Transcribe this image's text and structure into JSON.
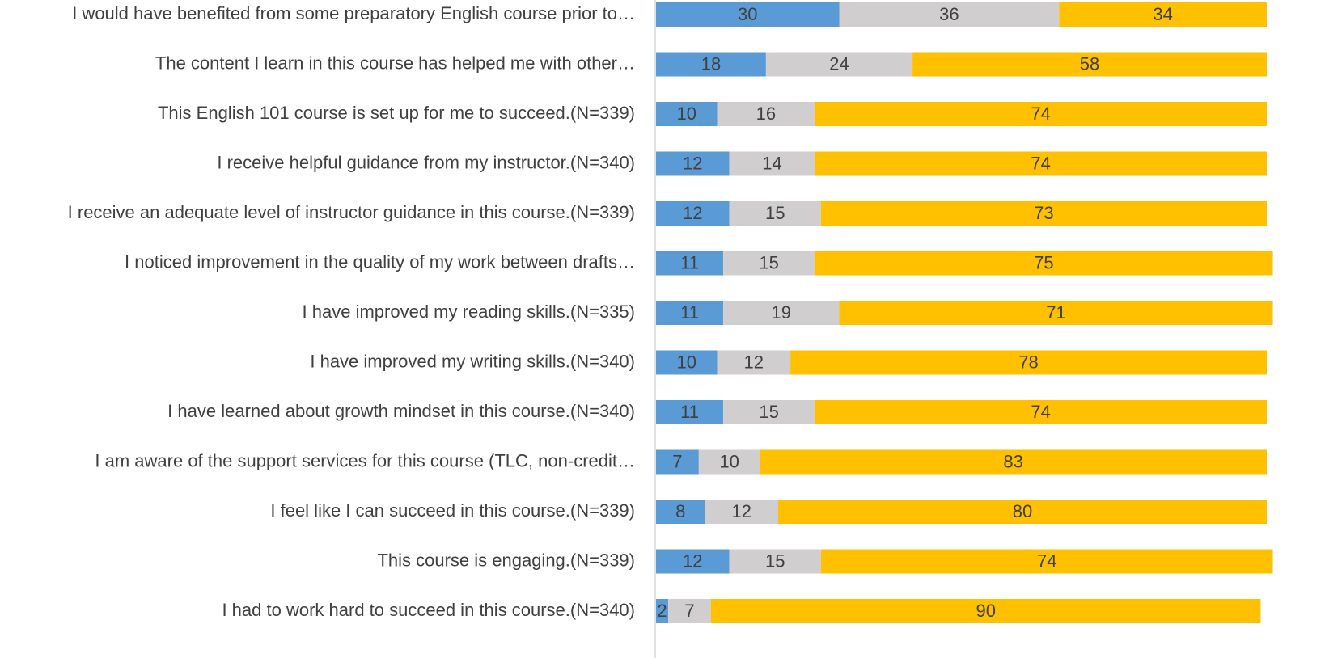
{
  "chart_data": {
    "type": "stacked-barh",
    "categories": [
      "I would have benefited from some preparatory English course prior to…",
      "The content I learn in this course has helped me with other…",
      "This English 101 course is set up for me to succeed.(N=339)",
      "I receive helpful guidance from my instructor.(N=340)",
      "I receive an adequate level of instructor guidance in this course.(N=339)",
      "I noticed improvement in the quality of my work between drafts…",
      "I have improved my reading skills.(N=335)",
      "I have improved my writing skills.(N=340)",
      "I have learned about growth mindset in this course.(N=340)",
      "I am aware of the support services for this course (TLC, non-credit…",
      "I feel like I can succeed in this course.(N=339)",
      "This course is engaging.(N=339)",
      "I had to work hard to succeed in this course.(N=340)"
    ],
    "series": [
      {
        "color": "#5b9bd5",
        "values": [
          30,
          18,
          10,
          12,
          12,
          11,
          11,
          10,
          11,
          7,
          8,
          12,
          2
        ]
      },
      {
        "color": "#d0cece",
        "values": [
          36,
          24,
          16,
          14,
          15,
          15,
          19,
          12,
          15,
          10,
          12,
          15,
          7
        ]
      },
      {
        "color": "#ffc000",
        "values": [
          34,
          58,
          74,
          74,
          73,
          75,
          71,
          78,
          74,
          83,
          80,
          74,
          90
        ]
      }
    ],
    "xlim": [
      0,
      100
    ]
  }
}
